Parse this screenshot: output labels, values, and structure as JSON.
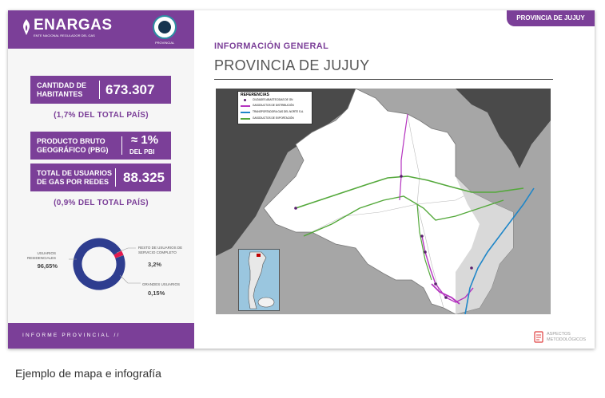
{
  "sidebar": {
    "logo": {
      "name": "ENARGAS",
      "subtitle": "ENTE NACIONAL REGULADOR DEL GAS"
    },
    "seal_label": "PROVINCIAL",
    "stats": [
      {
        "label": "CANTIDAD DE HABITANTES",
        "value": "673.307"
      },
      {
        "label": "PRODUCTO BRUTO GEOGRÁFICO (PBG)",
        "value": "≈ 1%",
        "value_sub": "DEL PBI"
      },
      {
        "label": "TOTAL DE USUARIOS DE GAS POR REDES",
        "value": "88.325"
      }
    ],
    "notes": [
      "(1,7% DEL TOTAL PAÍS)",
      "(0,9% DEL TOTAL PAÍS)"
    ],
    "donut": {
      "segments": [
        {
          "label": "USUARIOS RESIDENCIALES",
          "value": "96,65%",
          "fraction": 0.9665,
          "color": "#2e3d8f"
        },
        {
          "label": "RESTO DE USUARIOS DE SERVICIO COMPLETO",
          "value": "3,2%",
          "fraction": 0.032,
          "color": "#e3184e"
        },
        {
          "label": "GRANDES USUARIOS",
          "value": "0,15%",
          "fraction": 0.0015,
          "color": "#8a8a8a"
        }
      ]
    },
    "footer": "INFORME PROVINCIAL //"
  },
  "header": {
    "tab": "PROVINCIA DE JUJUY",
    "section_title": "INFORMACIÓN GENERAL",
    "title": "PROVINCIA DE JUJUY"
  },
  "map": {
    "legend_title": "REFERENCIAS",
    "legend": [
      {
        "label": "CIUDADES ABASTECIDAS DE GN",
        "color": "#5a1f6e",
        "kind": "dot"
      },
      {
        "label": "GASODUCTOS DE DISTRIBUCIÓN",
        "color": "#b534c0",
        "kind": "line"
      },
      {
        "label": "TRANSPORTADORA GAS DEL NORTE S.A.",
        "color": "#1f86c8",
        "kind": "line"
      },
      {
        "label": "GASODUCTOS DE EXPORTACIÓN",
        "color": "#53a83a",
        "kind": "line"
      }
    ]
  },
  "aspects": "ASPECTOS METODOLÓGICOS",
  "caption": "Ejemplo de mapa e infografía",
  "colors": {
    "brand": "#7b3f98",
    "pipeline_distribution": "#b534c0",
    "pipeline_export": "#53a83a",
    "transport": "#1f86c8"
  }
}
